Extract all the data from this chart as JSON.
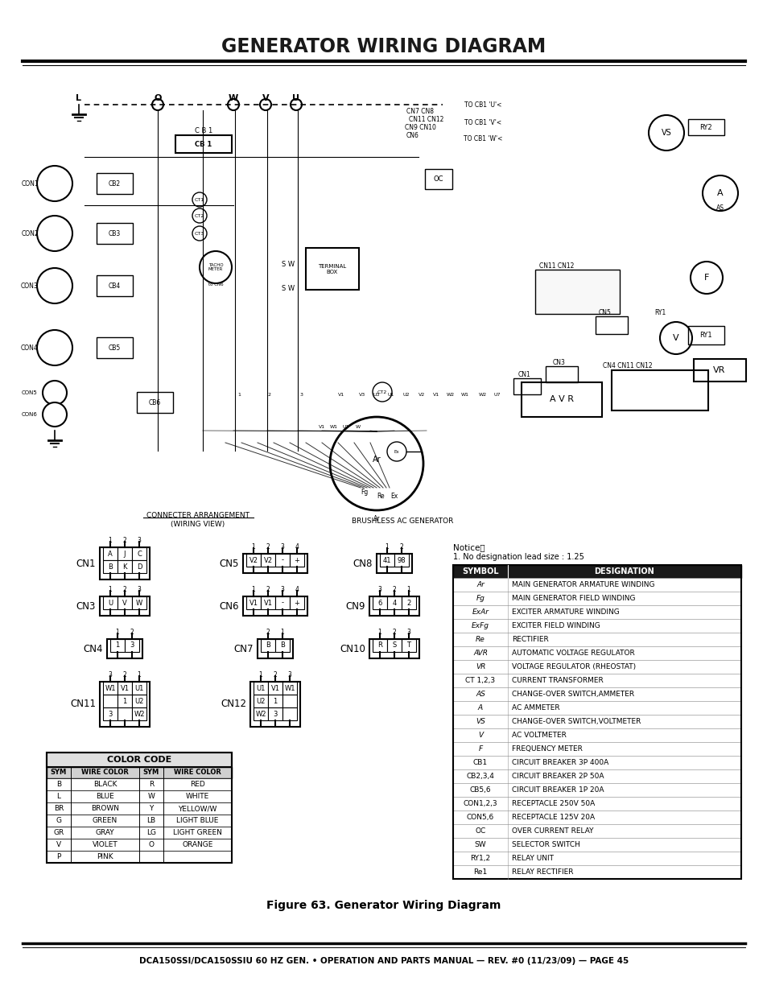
{
  "title": "GENERATOR WIRING DIAGRAM",
  "footer_text": "DCA150SSI/DCA150SSIU 60 HZ GEN. • OPERATION AND PARTS MANUAL — REV. #0 (11/23/09) — PAGE 45",
  "caption": "Figure 63. Generator Wiring Diagram",
  "notice": "Notice：",
  "notice2": "1. No designation lead size : 1.25",
  "bg_color": "#ffffff",
  "connector_arrangement_label1": "CONNECTER ARRANGEMENT",
  "connector_arrangement_label2": "(WIRING VIEW)",
  "brushless_label": "BRUSHLESS AC GENERATOR",
  "color_code_title": "COLOR CODE",
  "color_code_headers": [
    "SYM",
    "WIRE COLOR",
    "SYM",
    "WIRE COLOR"
  ],
  "color_code_rows": [
    [
      "B",
      "BLACK",
      "R",
      "RED"
    ],
    [
      "L",
      "BLUE",
      "W",
      "WHITE"
    ],
    [
      "BR",
      "BROWN",
      "Y",
      "YELLOW/W"
    ],
    [
      "G",
      "GREEN",
      "LB",
      "LIGHT BLUE"
    ],
    [
      "GR",
      "GRAY",
      "LG",
      "LIGHT GREEN"
    ],
    [
      "V",
      "VIOLET",
      "O",
      "ORANGE"
    ],
    [
      "P",
      "PINK",
      "",
      ""
    ]
  ],
  "symbol_table_rows": [
    [
      "Ar",
      "MAIN GENERATOR ARMATURE WINDING"
    ],
    [
      "Fg",
      "MAIN GENERATOR FIELD WINDING"
    ],
    [
      "ExAr",
      "EXCITER ARMATURE WINDING"
    ],
    [
      "ExFg",
      "EXCITER FIELD WINDING"
    ],
    [
      "Re",
      "RECTIFIER"
    ],
    [
      "AVR",
      "AUTOMATIC VOLTAGE REGULATOR"
    ],
    [
      "VR",
      "VOLTAGE REGULATOR (RHEOSTAT)"
    ],
    [
      "CT 1,2,3",
      "CURRENT TRANSFORMER"
    ],
    [
      "AS",
      "CHANGE-OVER SWITCH,AMMETER"
    ],
    [
      "A",
      "AC AMMETER"
    ],
    [
      "VS",
      "CHANGE-OVER SWITCH,VOLTMETER"
    ],
    [
      "V",
      "AC VOLTMETER"
    ],
    [
      "F",
      "FREQUENCY METER"
    ],
    [
      "CB1",
      "CIRCUIT BREAKER 3P 400A"
    ],
    [
      "CB2,3,4",
      "CIRCUIT BREAKER 2P 50A"
    ],
    [
      "CB5,6",
      "CIRCUIT BREAKER 1P 20A"
    ],
    [
      "CON1,2,3",
      "RECEPTACLE 250V 50A"
    ],
    [
      "CON5,6",
      "RECEPTACLE 125V 20A"
    ],
    [
      "OC",
      "OVER CURRENT RELAY"
    ],
    [
      "SW",
      "SELECTOR SWITCH"
    ],
    [
      "RY1,2",
      "RELAY UNIT"
    ],
    [
      "Re1",
      "RELAY RECTIFIER"
    ]
  ]
}
